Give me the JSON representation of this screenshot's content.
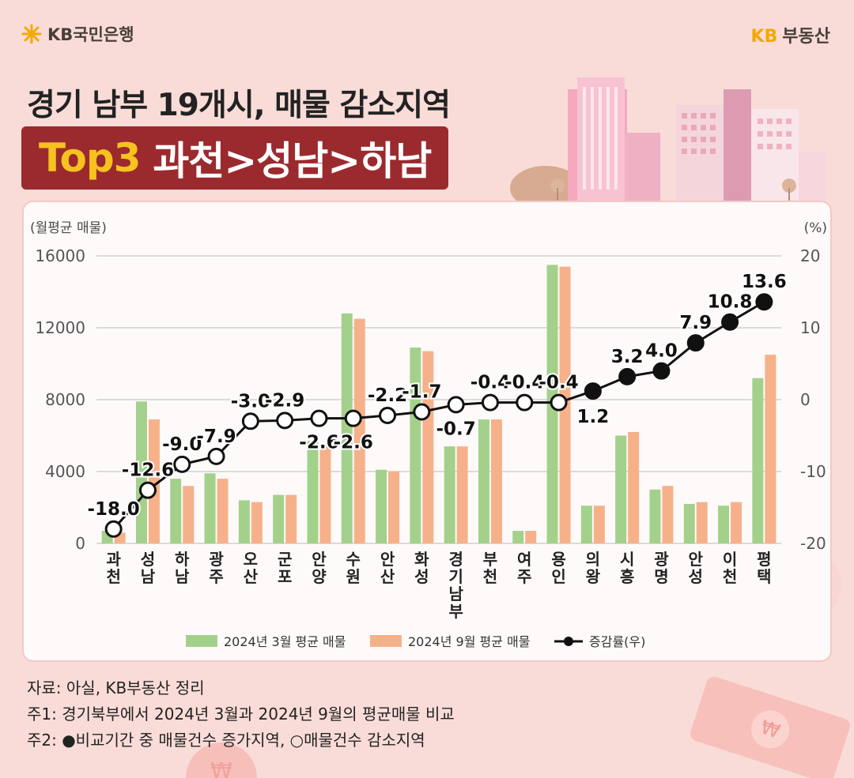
{
  "header": {
    "bank_logo": "KB국민은행",
    "brand_logo_kb": "KB",
    "brand_logo_text": "부동산",
    "title_line1": "경기 남부 19개시, 매물 감소지역",
    "title_highlight": "Top3",
    "title_rest": "과천>성남>하남"
  },
  "colors": {
    "march_bar": "#a3d18b",
    "sept_bar": "#f6b18a",
    "line": "#111111",
    "title_bg": "#9b2a2e",
    "highlight": "#f6c21e"
  },
  "chart_data": {
    "type": "bar",
    "left_axis_label": "(월평균 매물)",
    "right_axis_label": "(%)",
    "ylim_left": [
      0,
      16000
    ],
    "yticks_left": [
      "16000",
      "12000",
      "8000",
      "4000",
      "0"
    ],
    "ylim_right": [
      -20,
      20
    ],
    "yticks_right": [
      "20",
      "10",
      "0",
      "-10",
      "-20"
    ],
    "categories": [
      "과천",
      "성남",
      "하남",
      "광주",
      "오산",
      "군포",
      "안양",
      "수원",
      "안산",
      "화성",
      "경기남부",
      "부천",
      "여주",
      "용인",
      "의왕",
      "시흥",
      "광명",
      "안성",
      "이천",
      "평택"
    ],
    "series": [
      {
        "name": "2024년 3월 평균 매물",
        "type": "bar",
        "values": [
          700,
          7900,
          3600,
          3900,
          2400,
          2700,
          5700,
          12800,
          4100,
          10900,
          5400,
          6900,
          700,
          15500,
          2100,
          6000,
          3000,
          2200,
          2100,
          9200
        ]
      },
      {
        "name": "2024년 9월 평균 매물",
        "type": "bar",
        "values": [
          600,
          6900,
          3200,
          3600,
          2300,
          2700,
          5500,
          12500,
          4000,
          10700,
          5400,
          6900,
          700,
          15400,
          2100,
          6200,
          3200,
          2300,
          2300,
          10500
        ]
      },
      {
        "name": "증감률(우)",
        "type": "line",
        "axis": "right",
        "values": [
          -18.0,
          -12.6,
          -9.0,
          -7.9,
          -3.0,
          -2.9,
          -2.6,
          -2.6,
          -2.2,
          -1.7,
          -0.7,
          -0.4,
          -0.4,
          -0.4,
          1.2,
          3.2,
          4.0,
          7.9,
          10.8,
          13.6
        ],
        "labels": [
          "-18.0",
          "-12.6",
          "-9.0",
          "-7.9",
          "-3.0",
          "-2.9",
          "-2.6",
          "-2.6",
          "-2.2",
          "-1.7",
          "-0.7",
          "-0.4",
          "-0.4",
          "-0.4",
          "1.2",
          "3.2",
          "4.0",
          "7.9",
          "10.8",
          "13.6"
        ]
      }
    ],
    "legend_placement": "bottom",
    "grid": true
  },
  "notes": {
    "source": "자료: 아실, KB부동산 정리",
    "note1": "주1: 경기북부에서 2024년 3월과 2024년 9월의 평균매물 비교",
    "note2": "주2: ●비교기간 중 매물건수 증가지역, ○매물건수 감소지역"
  }
}
